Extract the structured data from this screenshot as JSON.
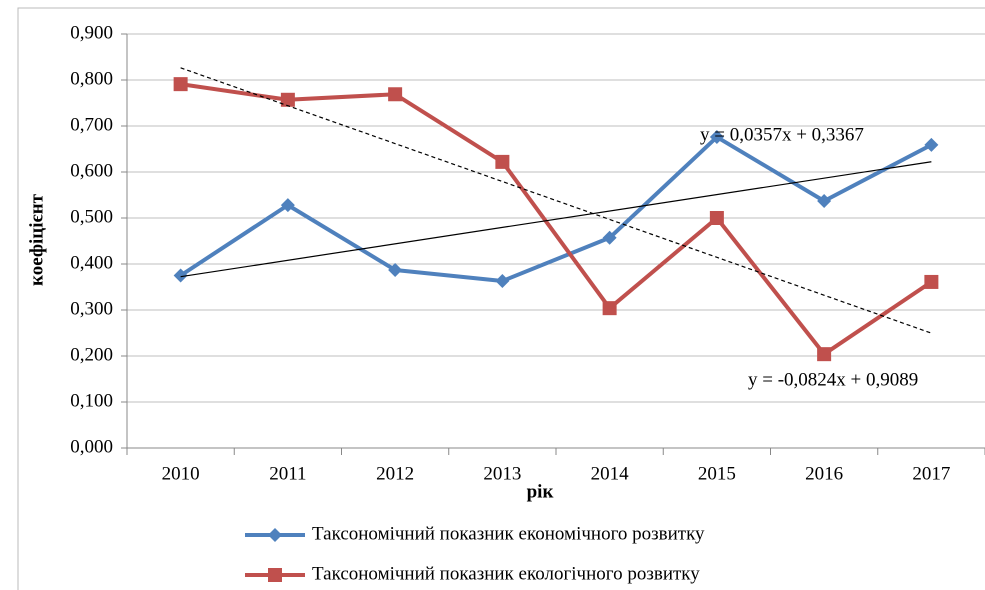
{
  "chart_data": {
    "type": "line",
    "x_label": "рік",
    "y_label": "коефіцієнт",
    "categories": [
      "2010",
      "2011",
      "2012",
      "2013",
      "2014",
      "2015",
      "2016",
      "2017"
    ],
    "series": [
      {
        "name": "Таксономічний показник економічного розвитку",
        "color": "#4f81bd",
        "marker": "diamond",
        "values": [
          0.375,
          0.528,
          0.387,
          0.363,
          0.457,
          0.676,
          0.537,
          0.659
        ]
      },
      {
        "name": "Таксономічний показник екологічного розвитку",
        "color": "#c0504d",
        "marker": "square",
        "values": [
          0.791,
          0.757,
          0.769,
          0.622,
          0.304,
          0.5,
          0.204,
          0.361
        ]
      }
    ],
    "trendlines": [
      {
        "slope": 0.0357,
        "intercept": 0.3367,
        "label": "y = 0,0357x + 0,3367",
        "style": "solid"
      },
      {
        "slope": -0.0824,
        "intercept": 0.9089,
        "label": "y = -0,0824x + 0,9089",
        "style": "dashed"
      }
    ],
    "ylim": [
      0,
      0.9
    ],
    "yticks": [
      {
        "value": 0,
        "label": "0,000"
      },
      {
        "value": 0.1,
        "label": "0,100"
      },
      {
        "value": 0.2,
        "label": "0,200"
      },
      {
        "value": 0.3,
        "label": "0,300"
      },
      {
        "value": 0.4,
        "label": "0,400"
      },
      {
        "value": 0.5,
        "label": "0,500"
      },
      {
        "value": 0.6,
        "label": "0,600"
      },
      {
        "value": 0.7,
        "label": "0,700"
      },
      {
        "value": 0.8,
        "label": "0,800"
      },
      {
        "value": 0.9,
        "label": "0,900"
      }
    ],
    "grid": true,
    "legend": "bottom"
  }
}
